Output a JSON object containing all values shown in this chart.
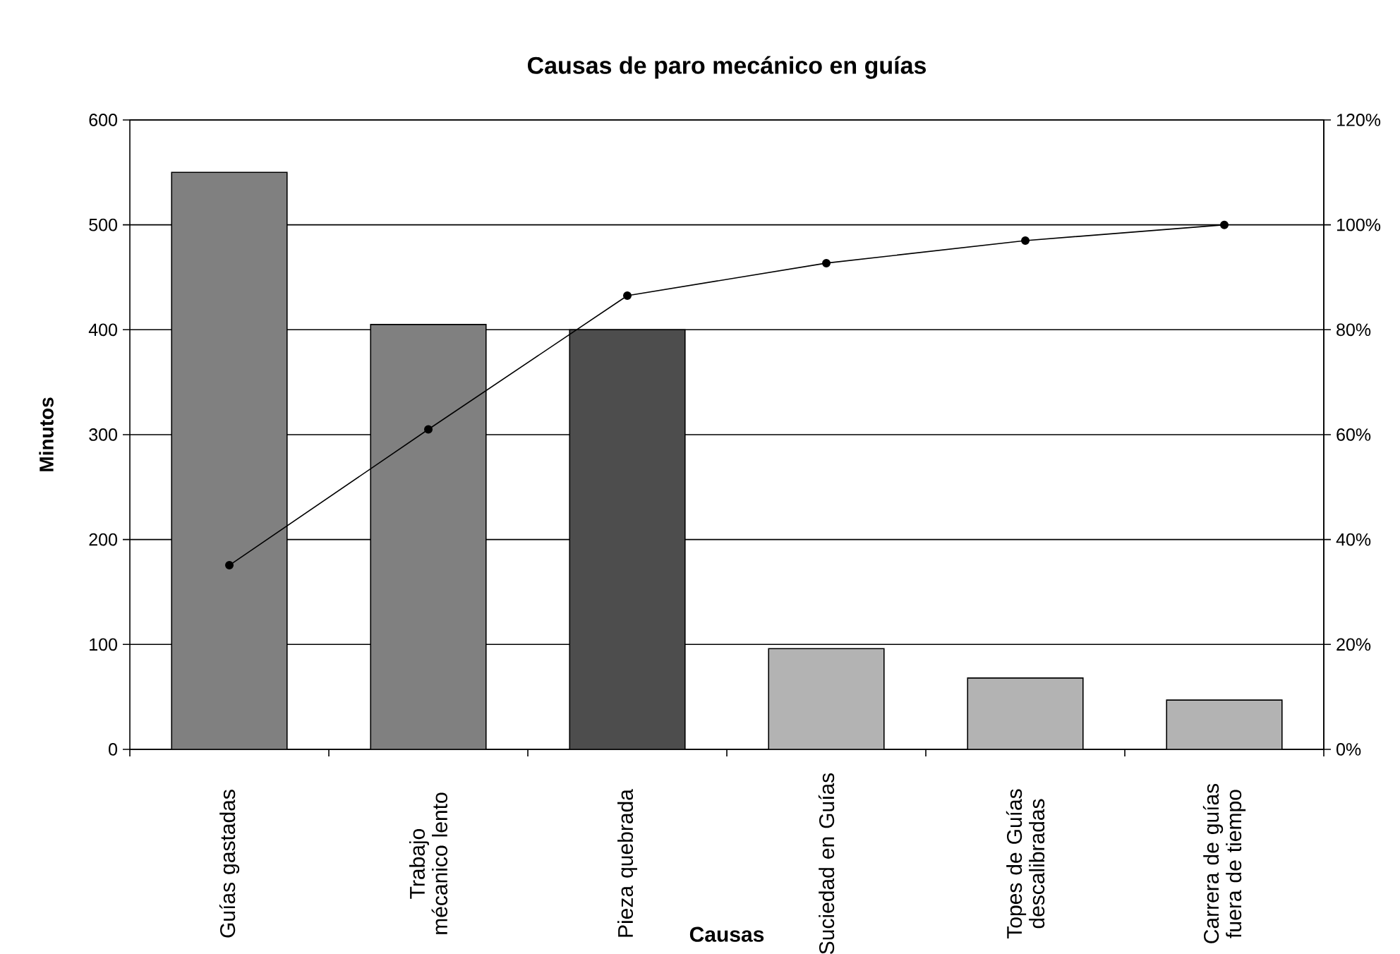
{
  "chart_data": {
    "type": "bar",
    "title": "Causas de paro mecánico en guías",
    "xlabel": "Causas",
    "ylabel": "Minutos",
    "categories": [
      "Guías gastadas",
      "Trabajo mécanico lento",
      "Pieza quebrada",
      "Suciedad en Guías",
      "Topes de Guías descalibradas",
      "Carrera de guías fuera de tiempo"
    ],
    "series": [
      {
        "values": [
          550,
          405,
          400,
          96,
          68,
          47
        ],
        "colors": [
          "#808080",
          "#808080",
          "#4d4d4d",
          "#b3b3b3",
          "#b3b3b3",
          "#b3b3b3"
        ]
      },
      {
        "type": "line",
        "axis": "y2",
        "color": "#000000",
        "marker": "circle",
        "values": [
          35.1,
          61.0,
          86.5,
          92.7,
          97.0,
          100
        ]
      }
    ],
    "ylim": [
      0,
      600
    ],
    "yticks": [
      0,
      100,
      200,
      300,
      400,
      500,
      600
    ],
    "y2lim": [
      0,
      120
    ],
    "y2ticks": [
      {
        "value": 0,
        "label": "0%"
      },
      {
        "value": 20,
        "label": "20%"
      },
      {
        "value": 40,
        "label": "40%"
      },
      {
        "value": 60,
        "label": "60%"
      },
      {
        "value": 80,
        "label": "80%"
      },
      {
        "value": 100,
        "label": "100%"
      },
      {
        "value": 120,
        "label": "120%"
      }
    ],
    "grid": "y"
  }
}
